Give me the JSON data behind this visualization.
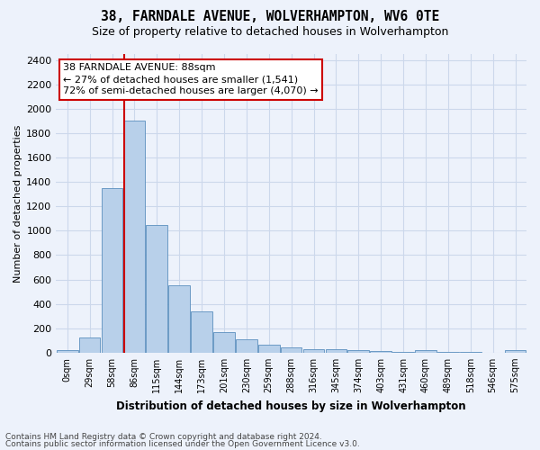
{
  "title": "38, FARNDALE AVENUE, WOLVERHAMPTON, WV6 0TE",
  "subtitle": "Size of property relative to detached houses in Wolverhampton",
  "xlabel": "Distribution of detached houses by size in Wolverhampton",
  "ylabel": "Number of detached properties",
  "footer_line1": "Contains HM Land Registry data © Crown copyright and database right 2024.",
  "footer_line2": "Contains public sector information licensed under the Open Government Licence v3.0.",
  "bar_labels": [
    "0sqm",
    "29sqm",
    "58sqm",
    "86sqm",
    "115sqm",
    "144sqm",
    "173sqm",
    "201sqm",
    "230sqm",
    "259sqm",
    "288sqm",
    "316sqm",
    "345sqm",
    "374sqm",
    "403sqm",
    "431sqm",
    "460sqm",
    "489sqm",
    "518sqm",
    "546sqm",
    "575sqm"
  ],
  "bar_values": [
    20,
    125,
    1350,
    1900,
    1050,
    550,
    340,
    165,
    110,
    65,
    40,
    30,
    28,
    20,
    15,
    5,
    20,
    3,
    3,
    2,
    20
  ],
  "bar_color": "#b8d0ea",
  "bar_edge_color": "#5b8fbe",
  "grid_color": "#ccd8eb",
  "background_color": "#edf2fb",
  "annotation_line1": "38 FARNDALE AVENUE: 88sqm",
  "annotation_line2": "← 27% of detached houses are smaller (1,541)",
  "annotation_line3": "72% of semi-detached houses are larger (4,070) →",
  "vline_color": "#cc0000",
  "vline_x": 2.525,
  "ylim": [
    0,
    2450
  ],
  "yticks": [
    0,
    200,
    400,
    600,
    800,
    1000,
    1200,
    1400,
    1600,
    1800,
    2000,
    2200,
    2400
  ],
  "ann_box_color": "#cc0000",
  "title_fontsize": 10.5,
  "subtitle_fontsize": 9,
  "footer_fontsize": 6.5,
  "ylabel_fontsize": 8,
  "xlabel_fontsize": 8.5,
  "ytick_fontsize": 8,
  "xtick_fontsize": 7,
  "ann_fontsize": 8
}
